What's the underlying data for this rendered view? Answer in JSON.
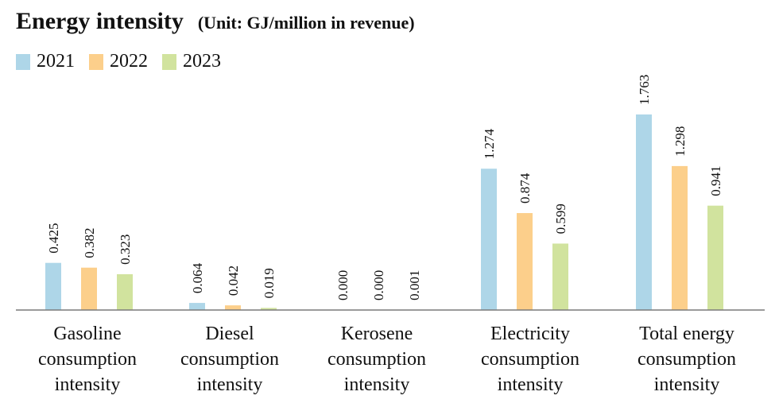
{
  "chart_data": {
    "type": "bar",
    "title": "Energy intensity",
    "subtitle": "(Unit: GJ/million in revenue)",
    "categories": [
      [
        "Gasoline",
        "consumption",
        "intensity"
      ],
      [
        "Diesel",
        "consumption",
        "intensity"
      ],
      [
        "Kerosene",
        "consumption",
        "intensity"
      ],
      [
        "Electricity",
        "consumption",
        "intensity"
      ],
      [
        "Total energy",
        "consumption",
        "intensity"
      ]
    ],
    "series": [
      {
        "name": "2021",
        "color": "#aed6e8",
        "values": [
          0.425,
          0.064,
          0.0,
          1.274,
          1.763
        ],
        "labels": [
          "0.425",
          "0.064",
          "0.000",
          "1.274",
          "1.763"
        ]
      },
      {
        "name": "2022",
        "color": "#fccf8b",
        "values": [
          0.382,
          0.042,
          0.0,
          0.874,
          1.298
        ],
        "labels": [
          "0.382",
          "0.042",
          "0.000",
          "0.874",
          "1.298"
        ]
      },
      {
        "name": "2023",
        "color": "#d1e39e",
        "values": [
          0.323,
          0.019,
          0.001,
          0.599,
          0.941
        ],
        "labels": [
          "0.323",
          "0.019",
          "0.001",
          "0.599",
          "0.941"
        ]
      }
    ],
    "ylim": [
      0,
      1.763
    ],
    "grid": false,
    "legend": "top-left"
  }
}
